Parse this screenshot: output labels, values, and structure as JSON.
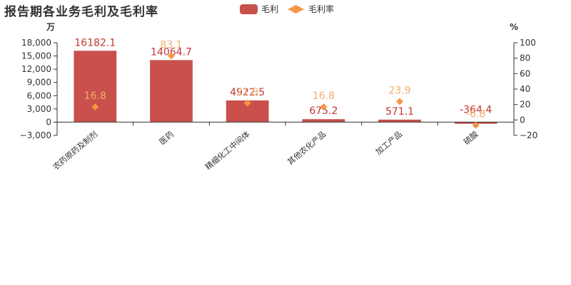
{
  "chart_data": {
    "type": "bar",
    "title": "报告期各业务毛利及毛利率",
    "categories": [
      "农药原药及制剂",
      "医药",
      "精细化工中间体",
      "其他农化产品",
      "加工产品",
      "硫酸"
    ],
    "series": [
      {
        "name": "毛利",
        "type": "bar",
        "axis": "left",
        "values": [
          16182.1,
          14064.7,
          4922.5,
          675.2,
          571.1,
          -364.4
        ]
      },
      {
        "name": "毛利率",
        "type": "scatter",
        "axis": "right",
        "values": [
          16.8,
          83.1,
          21.9,
          16.8,
          23.9,
          -6.8
        ]
      }
    ],
    "y_left": {
      "unit": "万",
      "min": -3000,
      "max": 18000,
      "ticks": [
        -3000,
        0,
        3000,
        6000,
        9000,
        12000,
        15000,
        18000
      ]
    },
    "y_right": {
      "unit": "%",
      "min": -20,
      "max": 100,
      "ticks": [
        -20,
        0,
        20,
        40,
        60,
        80,
        100
      ]
    },
    "legend_position": "top-center",
    "grid": false
  },
  "colors": {
    "bar": "#c23531",
    "bar_fill": "#c9504d",
    "point": "#f59646",
    "point_label": "#f4ad6b",
    "axis": "#333333"
  }
}
